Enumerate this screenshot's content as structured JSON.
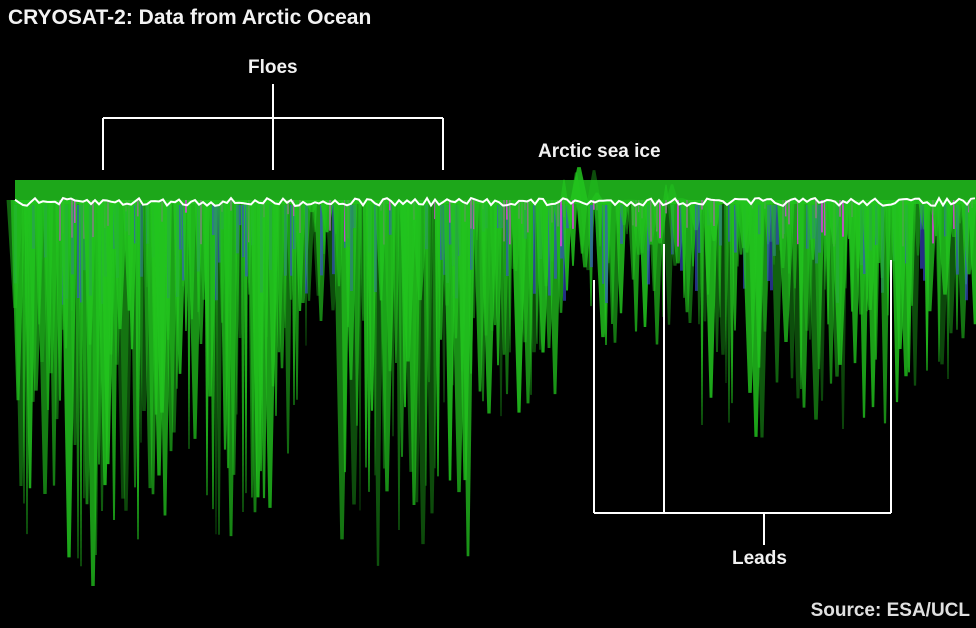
{
  "title": "CRYOSAT-2: Data from Arctic Ocean",
  "labels": {
    "floes": "Floes",
    "sea_ice": "Arctic sea ice",
    "leads": "Leads"
  },
  "source": "Source: ESA/UCL",
  "colors": {
    "background": "#000000",
    "echo_green": "#22c41e",
    "echo_blue": "#3a4fd8",
    "echo_magenta": "#e040e0",
    "surface_white": "#ffffff",
    "annotation": "#ffffff"
  }
}
